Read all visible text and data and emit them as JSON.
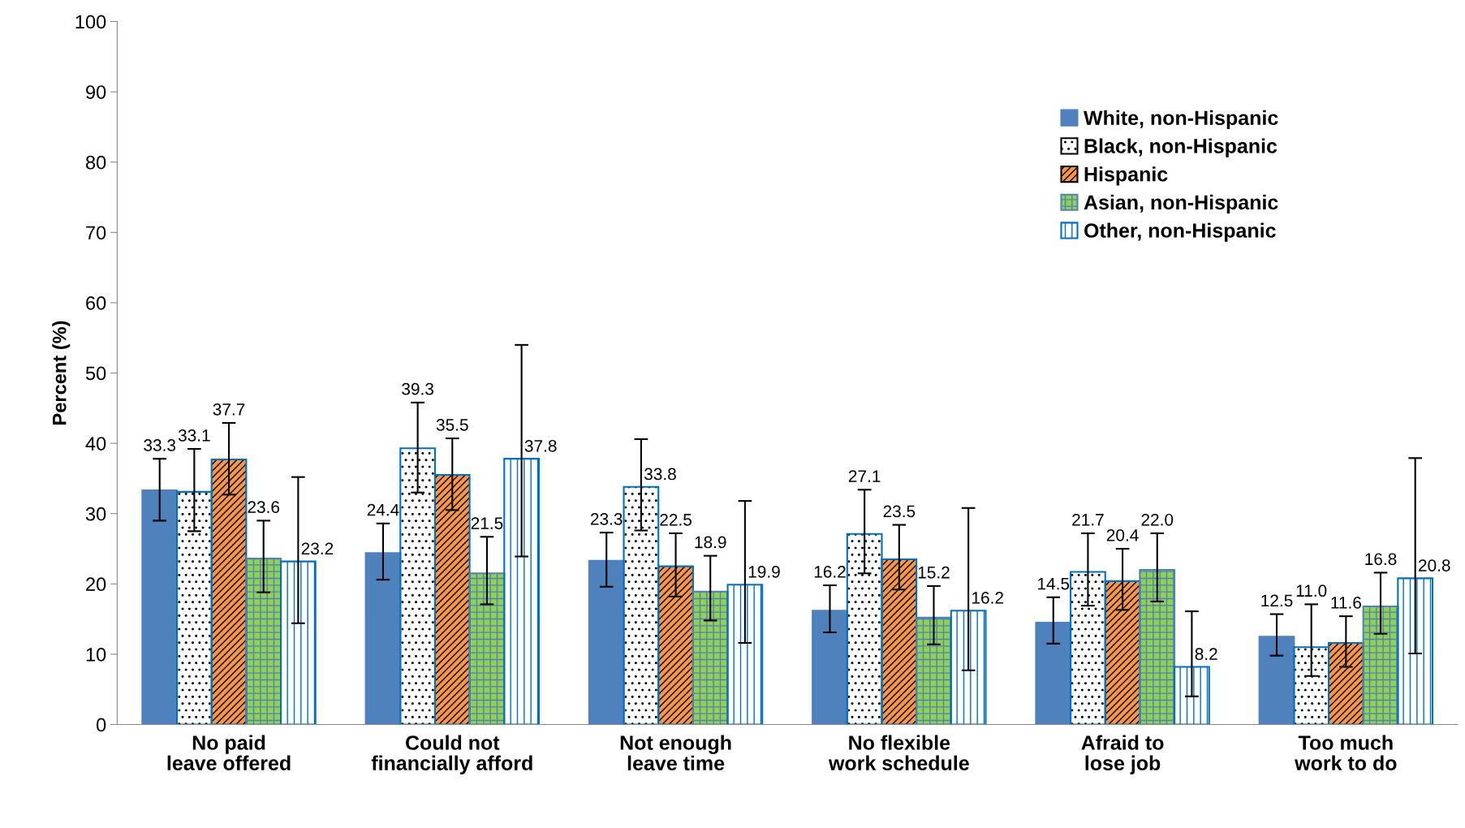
{
  "chart_data": {
    "type": "bar",
    "ylabel": "Percent (%)",
    "categories": [
      "No paid leave offered",
      "Could not financially afford",
      "Not enough leave time",
      "No flexible work schedule",
      "Afraid to lose job",
      "Too much work to do"
    ],
    "ylim": [
      0,
      100
    ],
    "yticks": [
      0,
      10,
      20,
      30,
      40,
      50,
      60,
      70,
      80,
      90,
      100
    ],
    "grid": false,
    "legend": "top right",
    "series": [
      {
        "name": "White, non-Hispanic",
        "color": "#4f81bd",
        "values": [
          33.3,
          24.4,
          23.3,
          16.2,
          14.5,
          12.5
        ],
        "value_labels": [
          "33.3",
          "24.4",
          "23.3",
          "16.2",
          "14.5",
          "12.5"
        ],
        "errors": [
          [
            29.0,
            37.8
          ],
          [
            20.6,
            28.6
          ],
          [
            19.6,
            27.3
          ],
          [
            13.1,
            19.8
          ],
          [
            11.5,
            18.1
          ],
          [
            9.8,
            15.7
          ]
        ]
      },
      {
        "name": "Black, non-Hispanic",
        "color": "#ffffff",
        "values": [
          33.1,
          39.3,
          33.8,
          27.1,
          21.7,
          11.0
        ],
        "value_labels": [
          "33.1",
          "39.3",
          "33.8",
          "27.1",
          "21.7",
          "11.0"
        ],
        "errors": [
          [
            27.5,
            39.2
          ],
          [
            33.0,
            45.8
          ],
          [
            27.6,
            40.6
          ],
          [
            21.5,
            33.4
          ],
          [
            16.9,
            27.2
          ],
          [
            6.9,
            17.1
          ]
        ]
      },
      {
        "name": "Hispanic",
        "color": "#f79646",
        "values": [
          37.7,
          35.5,
          22.5,
          23.5,
          20.4,
          11.6
        ],
        "value_labels": [
          "37.7",
          "35.5",
          "22.5",
          "23.5",
          "20.4",
          "11.6"
        ],
        "errors": [
          [
            32.7,
            42.9
          ],
          [
            30.5,
            40.7
          ],
          [
            18.2,
            27.2
          ],
          [
            19.2,
            28.4
          ],
          [
            16.3,
            25.0
          ],
          [
            8.2,
            15.4
          ]
        ]
      },
      {
        "name": "Asian, non-Hispanic",
        "color": "#92d050",
        "values": [
          23.6,
          21.5,
          18.9,
          15.2,
          22.0,
          16.8
        ],
        "value_labels": [
          "23.6",
          "21.5",
          "18.9",
          "15.2",
          "22.0",
          "16.8"
        ],
        "errors": [
          [
            18.8,
            29.0
          ],
          [
            17.1,
            26.7
          ],
          [
            14.8,
            24.0
          ],
          [
            11.4,
            19.7
          ],
          [
            17.5,
            27.2
          ],
          [
            12.9,
            21.6
          ]
        ]
      },
      {
        "name": "Other, non-Hispanic",
        "color": "#ffffff",
        "values": [
          23.2,
          37.8,
          19.9,
          16.2,
          8.2,
          20.8
        ],
        "value_labels": [
          "23.2",
          "37.8",
          "19.9",
          "16.2",
          "8.2",
          "20.8"
        ],
        "errors": [
          [
            14.4,
            35.2
          ],
          [
            23.9,
            54.0
          ],
          [
            11.6,
            31.8
          ],
          [
            7.7,
            30.8
          ],
          [
            4.0,
            16.1
          ],
          [
            10.1,
            37.9
          ]
        ]
      }
    ]
  }
}
